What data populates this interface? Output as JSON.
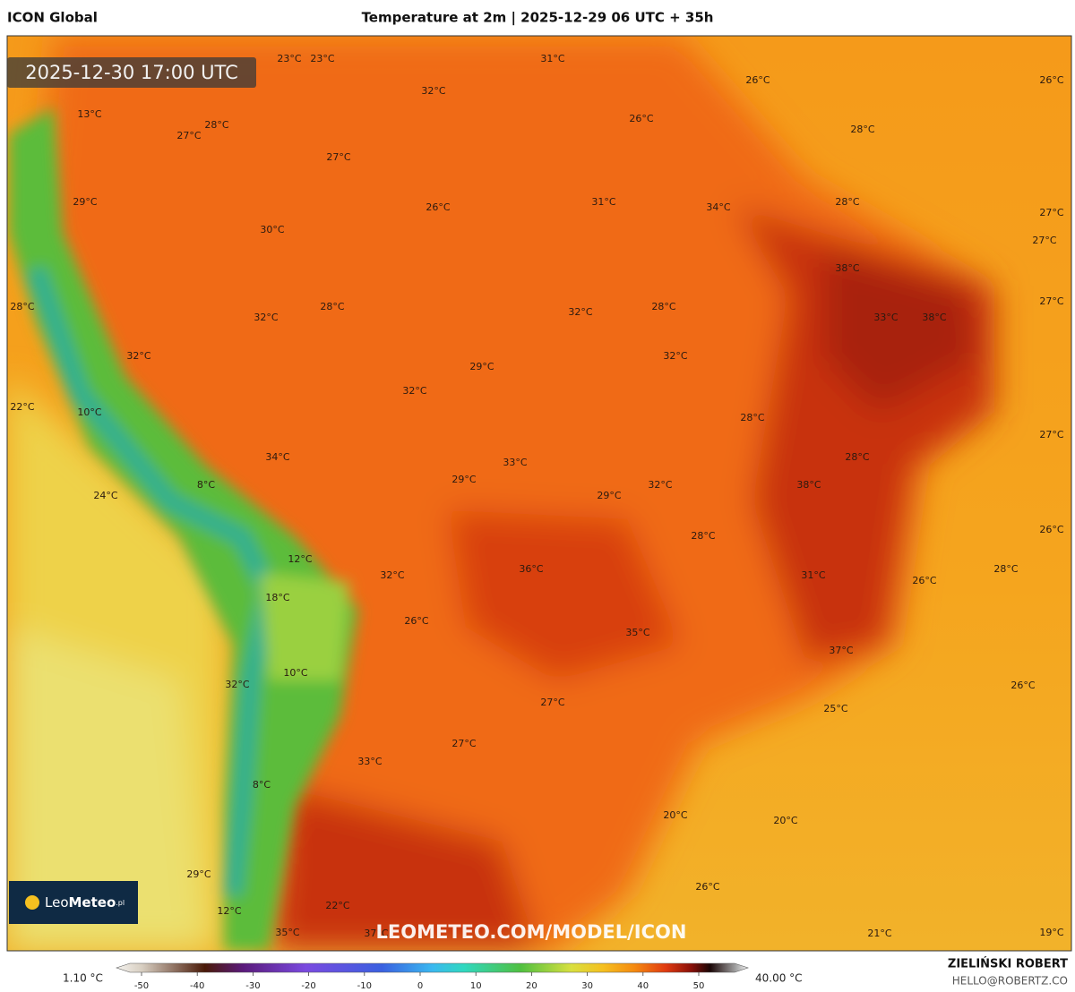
{
  "header": {
    "model": "ICON Global",
    "title": "Temperature at 2m | 2025-12-29 06 UTC + 35h"
  },
  "valid_time": "2025-12-30 17:00 UTC",
  "logo": {
    "name": "Leo",
    "name2": "Meteo",
    "suffix": ".pl"
  },
  "watermark": "LEOMETEO.COM/MODEL/ICON",
  "author": {
    "name": "ZIELIŃSKI ROBERT",
    "email": "HELLO@ROBERTZ.CO"
  },
  "colorbar": {
    "min_label": "1.10 °C",
    "max_label": "40.00 °C",
    "ticks": [
      -50,
      -40,
      -30,
      -20,
      -10,
      0,
      10,
      20,
      30,
      40,
      50
    ]
  },
  "map_labels": [
    "23°C",
    "23°C",
    "31°C",
    "32°C",
    "26°C",
    "26°C",
    "13°C",
    "28°C",
    "26°C",
    "27°C",
    "28°C",
    "27°C",
    "29°C",
    "26°C",
    "31°C",
    "34°C",
    "28°C",
    "27°C",
    "30°C",
    "27°C",
    "38°C",
    "28°C",
    "32°C",
    "28°C",
    "32°C",
    "28°C",
    "33°C",
    "38°C",
    "27°C",
    "32°C",
    "32°C",
    "29°C",
    "22°C",
    "10°C",
    "32°C",
    "28°C",
    "27°C",
    "34°C",
    "33°C",
    "28°C",
    "29°C",
    "8°C",
    "32°C",
    "29°C",
    "38°C",
    "24°C",
    "26°C",
    "28°C",
    "12°C",
    "36°C",
    "32°C",
    "31°C",
    "26°C",
    "28°C",
    "18°C",
    "26°C",
    "35°C",
    "37°C",
    "10°C",
    "32°C",
    "26°C",
    "27°C",
    "25°C",
    "27°C",
    "33°C",
    "8°C",
    "20°C",
    "20°C",
    "26°C",
    "29°C",
    "12°C",
    "22°C",
    "35°C",
    "37°C",
    "21°C",
    "19°C"
  ]
}
